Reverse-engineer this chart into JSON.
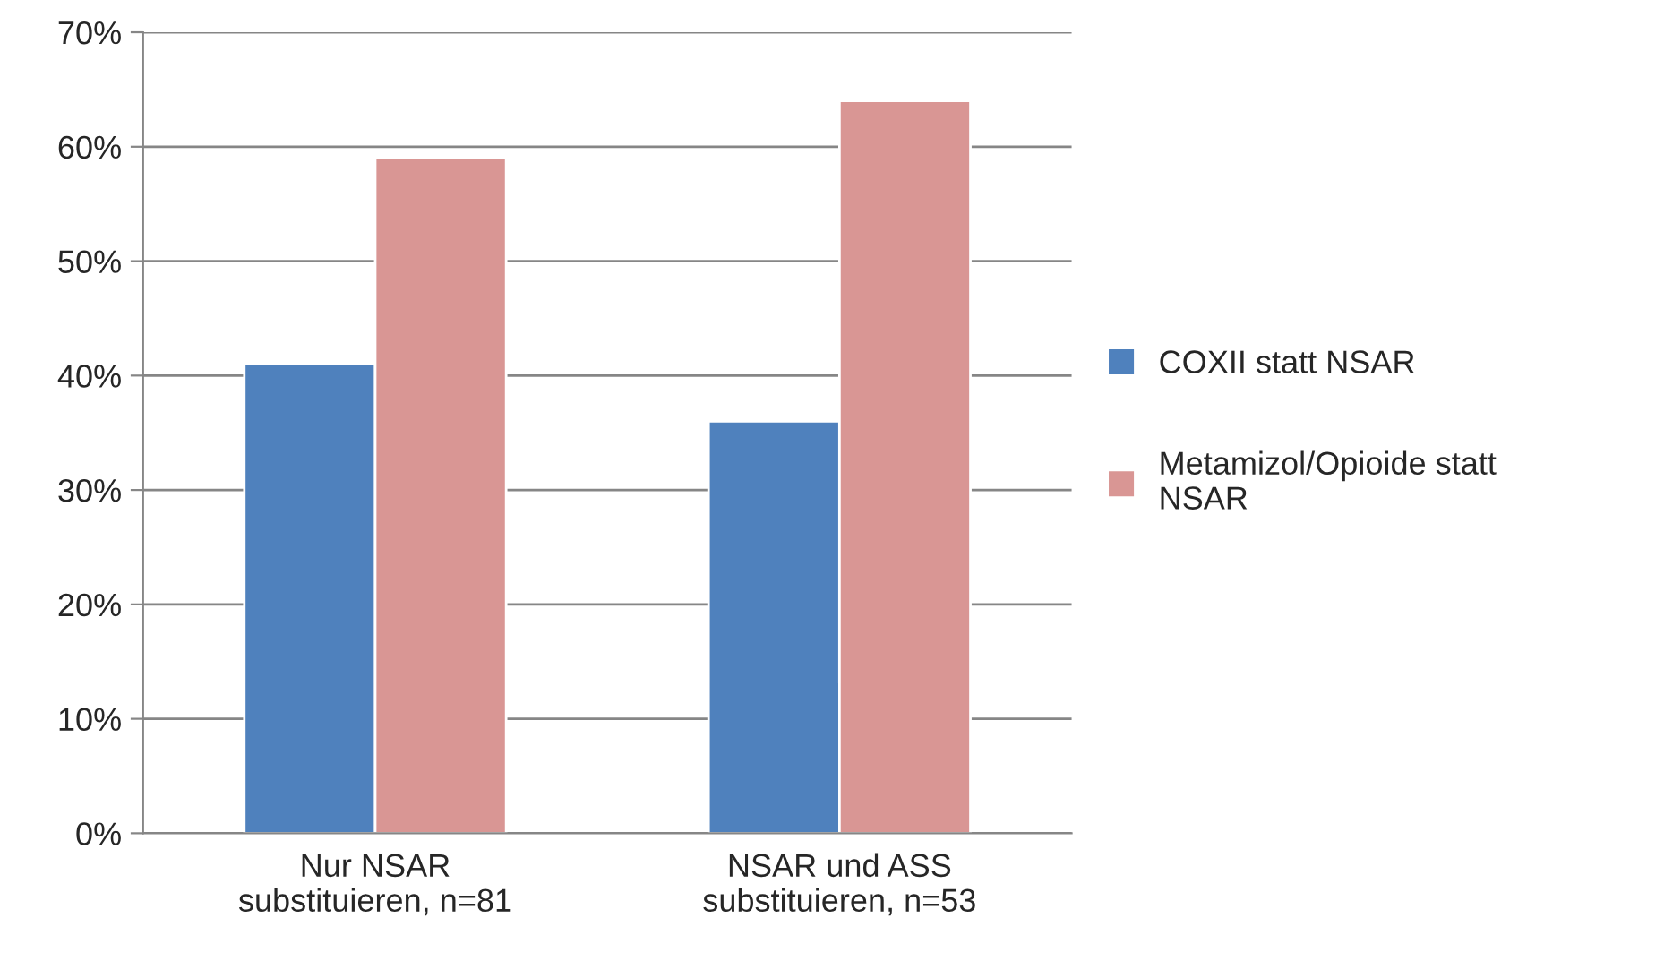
{
  "chart_data": {
    "type": "bar",
    "categories": [
      "Nur NSAR\nsubstituieren, n=81",
      "NSAR und ASS\nsubstituieren, n=53"
    ],
    "series": [
      {
        "name": "COXII statt NSAR",
        "color": "#4f81bd",
        "values": [
          41,
          36
        ]
      },
      {
        "name": "Metamizol/Opioide statt\nNSAR",
        "color": "#d99694",
        "values": [
          59,
          64
        ]
      }
    ],
    "ylim": [
      0,
      70
    ],
    "yticks": [
      {
        "value": 0,
        "label": "0%"
      },
      {
        "value": 10,
        "label": "10%"
      },
      {
        "value": 20,
        "label": "20%"
      },
      {
        "value": 30,
        "label": "30%"
      },
      {
        "value": 40,
        "label": "40%"
      },
      {
        "value": 50,
        "label": "50%"
      },
      {
        "value": 60,
        "label": "60%"
      },
      {
        "value": 70,
        "label": "70%"
      }
    ],
    "grid": "y",
    "legend": "right"
  }
}
